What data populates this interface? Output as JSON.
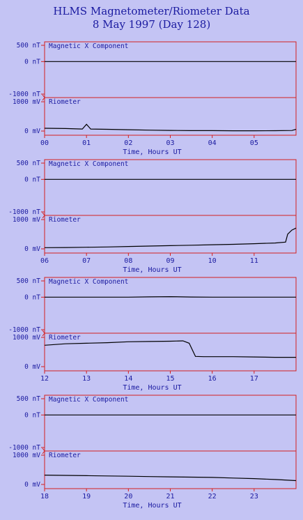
{
  "title": "HLMS Magnetometer/Riometer Data",
  "subtitle": "8 May 1997 (Day 128)",
  "colors": {
    "background": "#c4c4f4",
    "frame": "#d42020",
    "text": "#1a1aa0",
    "trace": "#000000"
  },
  "chart_data": [
    {
      "type": "line",
      "xlabel": "Time, Hours UT",
      "xlim": [
        0,
        6
      ],
      "xticks": [
        "00",
        "01",
        "02",
        "03",
        "04",
        "05"
      ],
      "panels": [
        {
          "label": "Magnetic X Component",
          "yticks": [
            "500 nT",
            "0 nT",
            "-1000 nT"
          ],
          "ylim": [
            -1000,
            500
          ],
          "x": [
            0,
            1,
            2,
            3,
            4,
            5,
            6
          ],
          "values": [
            0,
            0,
            0,
            0,
            0,
            0,
            0
          ]
        },
        {
          "label": "Riometer",
          "yticks": [
            "1000 mV",
            "0 mV"
          ],
          "ylim": [
            0,
            1000
          ],
          "x": [
            0,
            0.5,
            0.9,
            1.0,
            1.1,
            1.5,
            2,
            2.5,
            3,
            3.5,
            4,
            4.5,
            5,
            5.5,
            5.9,
            6
          ],
          "values": [
            95,
            85,
            70,
            230,
            70,
            60,
            45,
            30,
            22,
            15,
            15,
            10,
            10,
            12,
            20,
            60
          ]
        }
      ]
    },
    {
      "type": "line",
      "xlabel": "Time, Hours UT",
      "xlim": [
        6,
        12
      ],
      "xticks": [
        "06",
        "07",
        "08",
        "09",
        "10",
        "11"
      ],
      "panels": [
        {
          "label": "Magnetic X Component",
          "yticks": [
            "500 nT",
            "0 nT",
            "-1000 nT"
          ],
          "ylim": [
            -1000,
            500
          ],
          "x": [
            6,
            7,
            8,
            9,
            10,
            11,
            12
          ],
          "values": [
            0,
            0,
            0,
            0,
            0,
            0,
            0
          ]
        },
        {
          "label": "Riometer",
          "yticks": [
            "1000 mV",
            "0 mV"
          ],
          "ylim": [
            0,
            1000
          ],
          "x": [
            6,
            6.5,
            7,
            7.5,
            8,
            8.5,
            9,
            9.5,
            10,
            10.5,
            11,
            11.5,
            11.75,
            11.8,
            11.9,
            12
          ],
          "values": [
            40,
            45,
            55,
            65,
            80,
            95,
            110,
            125,
            140,
            155,
            175,
            200,
            230,
            500,
            640,
            710
          ]
        }
      ]
    },
    {
      "type": "line",
      "xlabel": "Time, Hours UT",
      "xlim": [
        12,
        18
      ],
      "xticks": [
        "12",
        "13",
        "14",
        "15",
        "16",
        "17"
      ],
      "panels": [
        {
          "label": "Magnetic X Component",
          "yticks": [
            "500 nT",
            "0 nT",
            "-1000 nT"
          ],
          "ylim": [
            -1000,
            500
          ],
          "x": [
            12,
            14,
            14.5,
            15,
            15.5,
            16,
            18
          ],
          "values": [
            0,
            0,
            10,
            15,
            5,
            0,
            0
          ]
        },
        {
          "label": "Riometer",
          "yticks": [
            "1000 mV",
            "0 mV"
          ],
          "ylim": [
            0,
            1000
          ],
          "x": [
            12,
            12.5,
            13,
            13.5,
            14,
            14.5,
            15,
            15.3,
            15.45,
            15.6,
            15.8,
            16,
            16.5,
            17,
            17.5,
            18
          ],
          "values": [
            730,
            780,
            800,
            820,
            850,
            860,
            870,
            880,
            800,
            350,
            340,
            340,
            340,
            330,
            320,
            320
          ]
        }
      ]
    },
    {
      "type": "line",
      "xlabel": "Time, Hours UT",
      "xlim": [
        18,
        24
      ],
      "xticks": [
        "18",
        "19",
        "20",
        "21",
        "22",
        "23"
      ],
      "panels": [
        {
          "label": "Magnetic X Component",
          "yticks": [
            "500 nT",
            "0 nT",
            "-1000 nT"
          ],
          "ylim": [
            -1000,
            500
          ],
          "x": [
            18,
            19,
            20,
            21,
            22,
            23,
            24
          ],
          "values": [
            0,
            0,
            0,
            0,
            0,
            0,
            0
          ]
        },
        {
          "label": "Riometer",
          "yticks": [
            "1000 mV",
            "0 mV"
          ],
          "ylim": [
            0,
            1000
          ],
          "x": [
            18,
            18.5,
            19,
            19.5,
            20,
            20.5,
            21,
            21.5,
            22,
            22.5,
            23,
            23.5,
            24
          ],
          "values": [
            320,
            310,
            300,
            290,
            280,
            270,
            260,
            250,
            240,
            220,
            200,
            170,
            130
          ]
        }
      ]
    }
  ]
}
